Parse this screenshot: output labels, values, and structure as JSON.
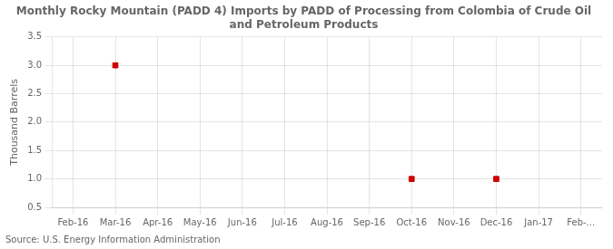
{
  "chart_data": {
    "type": "scatter",
    "title": "Monthly Rocky Mountain (PADD 4) Imports by PADD of Processing from Colombia of Crude Oil\nand Petroleum Products",
    "ylabel": "Thousand Barrels",
    "annotations": [
      "Source: U.S. Energy Information Administration"
    ],
    "categories": [
      "Feb-16",
      "Mar-16",
      "Apr-16",
      "May-16",
      "Jun-16",
      "Jul-16",
      "Aug-16",
      "Sep-16",
      "Oct-16",
      "Nov-16",
      "Dec-16",
      "Jan-17",
      "Feb-..."
    ],
    "values": [
      null,
      3.0,
      null,
      null,
      null,
      null,
      null,
      null,
      1.0,
      null,
      1.0,
      null,
      null
    ],
    "color": "#CC0000",
    "marker": "square",
    "ylim": [
      0.5,
      3.5
    ],
    "yticks": [
      0.5,
      {
        "value": 1.0,
        "label": "1.0"
      },
      1.5,
      {
        "value": 2.0,
        "label": "2.0"
      },
      2.5,
      {
        "value": 3.0,
        "label": "3.0"
      },
      3.5
    ],
    "grid": true
  }
}
